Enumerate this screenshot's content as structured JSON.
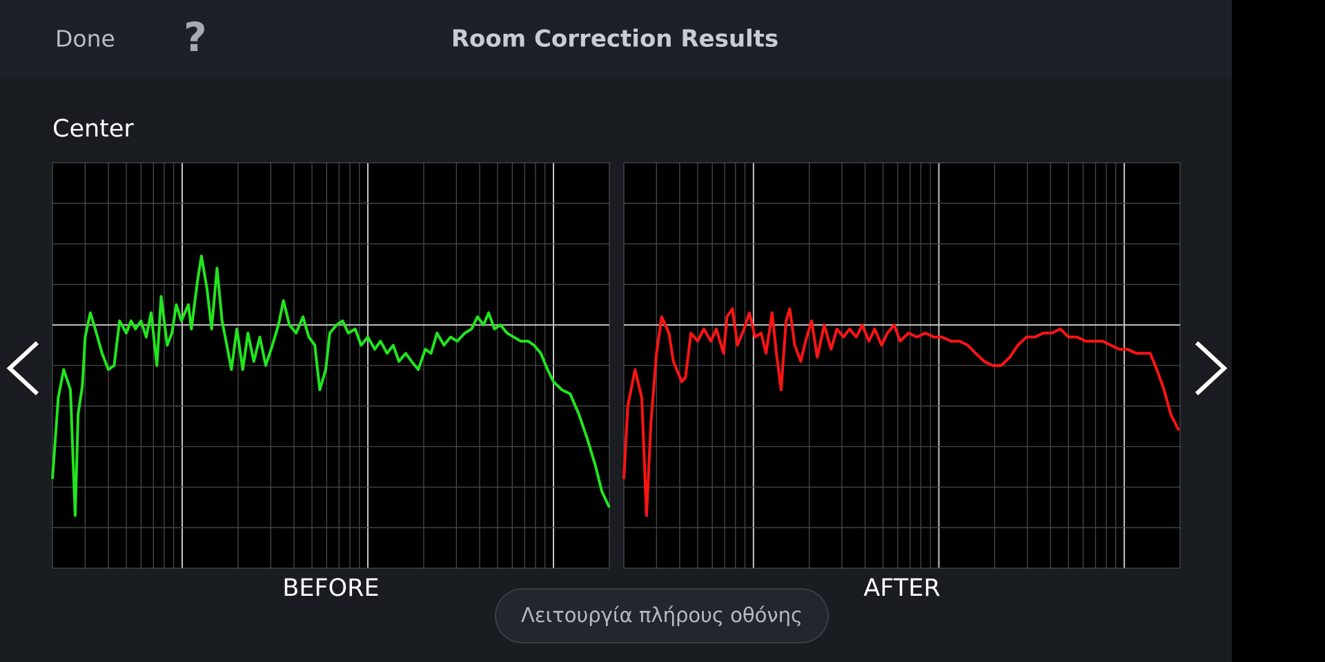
{
  "header": {
    "done": "Done",
    "help": "?",
    "title": "Room Correction Results"
  },
  "section": {
    "label": "Center"
  },
  "fullscreen_button": {
    "label": "Λειτουργία πλήρους οθόνης"
  },
  "chart_data": [
    {
      "type": "line",
      "title": "BEFORE",
      "color": "#22e51e",
      "log_x": true,
      "grid": true,
      "xlim": [
        20,
        20000
      ],
      "ylim": [
        -6,
        4
      ],
      "xticks": [
        20,
        30,
        40,
        50,
        60,
        70,
        80,
        90,
        100,
        200,
        300,
        400,
        500,
        600,
        700,
        800,
        900,
        1000,
        2000,
        3000,
        4000,
        5000,
        6000,
        7000,
        8000,
        9000,
        10000,
        20000
      ],
      "yticks": [
        -6,
        -5,
        -4,
        -3,
        -2,
        -1,
        0,
        1,
        2,
        3,
        4
      ],
      "x": [
        20,
        21.5,
        23,
        25,
        26.5,
        27.5,
        29,
        30,
        32,
        34,
        37,
        40,
        43,
        46,
        50,
        53,
        56,
        60,
        64,
        68,
        73,
        77,
        83,
        88,
        93,
        99,
        108,
        112,
        121,
        127,
        136,
        144,
        154,
        164,
        174,
        184,
        197,
        212,
        226,
        243,
        262,
        282,
        306,
        330,
        351,
        378,
        411,
        447,
        481,
        518,
        551,
        593,
        624,
        679,
        731,
        785,
        855,
        920,
        1000,
        1090,
        1170,
        1270,
        1370,
        1470,
        1600,
        1720,
        1870,
        2040,
        2190,
        2360,
        2570,
        2790,
        3030,
        3330,
        3620,
        3900,
        4200,
        4470,
        4810,
        5180,
        5620,
        6110,
        6650,
        7310,
        7850,
        8550,
        9290,
        10000,
        11100,
        12300,
        13700,
        15200,
        16900,
        18200,
        20000
      ],
      "values": [
        -3.8,
        -1.8,
        -1.1,
        -1.6,
        -4.7,
        -2.2,
        -1.5,
        -0.3,
        0.3,
        -0.1,
        -0.7,
        -1.1,
        -1.0,
        0.1,
        -0.2,
        0.1,
        -0.1,
        0.1,
        -0.3,
        0.3,
        -1.0,
        0.7,
        -0.5,
        -0.2,
        0.5,
        0.1,
        0.5,
        -0.1,
        1.1,
        1.7,
        0.9,
        -0.1,
        1.4,
        0.1,
        -0.5,
        -1.1,
        -0.1,
        -1.1,
        -0.2,
        -0.9,
        -0.3,
        -1.0,
        -0.5,
        0,
        0.6,
        0,
        -0.2,
        0.2,
        -0.3,
        -0.5,
        -1.6,
        -1.1,
        -0.2,
        0,
        0.1,
        -0.2,
        -0.1,
        -0.5,
        -0.3,
        -0.6,
        -0.4,
        -0.7,
        -0.5,
        -0.9,
        -0.7,
        -0.9,
        -1.1,
        -0.6,
        -0.7,
        -0.2,
        -0.5,
        -0.3,
        -0.4,
        -0.2,
        -0.1,
        0.2,
        0,
        0.3,
        -0.1,
        0,
        -0.2,
        -0.3,
        -0.4,
        -0.4,
        -0.5,
        -0.7,
        -1.1,
        -1.4,
        -1.6,
        -1.7,
        -2.2,
        -2.8,
        -3.5,
        -4.1,
        -4.5
      ]
    },
    {
      "type": "line",
      "title": "AFTER",
      "color": "#ff1414",
      "log_x": true,
      "grid": true,
      "xlim": [
        20,
        20000
      ],
      "ylim": [
        -6,
        4
      ],
      "xticks": [
        20,
        30,
        40,
        50,
        60,
        70,
        80,
        90,
        100,
        200,
        300,
        400,
        500,
        600,
        700,
        800,
        900,
        1000,
        2000,
        3000,
        4000,
        5000,
        6000,
        7000,
        8000,
        9000,
        10000,
        20000
      ],
      "yticks": [
        -6,
        -5,
        -4,
        -3,
        -2,
        -1,
        0,
        1,
        2,
        3,
        4
      ],
      "x": [
        20,
        21,
        23,
        25,
        26.5,
        28,
        30,
        32,
        35,
        37,
        41,
        43,
        46,
        50,
        54,
        59,
        63,
        69,
        72,
        77,
        82,
        89,
        95,
        102,
        110,
        117,
        126,
        133,
        141,
        150,
        157,
        167,
        180,
        191,
        206,
        221,
        241,
        262,
        282,
        306,
        330,
        359,
        386,
        419,
        451,
        491,
        528,
        574,
        618,
        686,
        762,
        845,
        940,
        1040,
        1160,
        1290,
        1430,
        1580,
        1760,
        1950,
        2170,
        2410,
        2670,
        2970,
        3300,
        3660,
        4070,
        4520,
        5010,
        5560,
        6180,
        6860,
        7620,
        8460,
        9390,
        10400,
        11600,
        12900,
        13800,
        15000,
        16400,
        17800,
        19700
      ],
      "values": [
        -3.8,
        -2.0,
        -1.1,
        -1.8,
        -4.7,
        -2.4,
        -0.7,
        0.2,
        -0.2,
        -0.9,
        -1.4,
        -1.3,
        -0.2,
        -0.4,
        -0.1,
        -0.4,
        -0.1,
        -0.7,
        0.2,
        0.4,
        -0.5,
        -0.1,
        0.3,
        -0.3,
        -0.2,
        -0.7,
        0.3,
        -0.7,
        -1.6,
        0.1,
        0.4,
        -0.5,
        -0.9,
        -0.4,
        0.1,
        -0.8,
        0,
        -0.6,
        -0.1,
        -0.3,
        -0.1,
        -0.3,
        0,
        -0.4,
        -0.1,
        -0.5,
        -0.2,
        0,
        -0.4,
        -0.2,
        -0.3,
        -0.2,
        -0.3,
        -0.3,
        -0.4,
        -0.4,
        -0.5,
        -0.7,
        -0.9,
        -1.0,
        -1.0,
        -0.8,
        -0.5,
        -0.3,
        -0.3,
        -0.2,
        -0.2,
        -0.1,
        -0.3,
        -0.3,
        -0.4,
        -0.4,
        -0.4,
        -0.5,
        -0.6,
        -0.6,
        -0.7,
        -0.7,
        -0.7,
        -1.1,
        -1.6,
        -2.2,
        -2.6
      ]
    }
  ]
}
